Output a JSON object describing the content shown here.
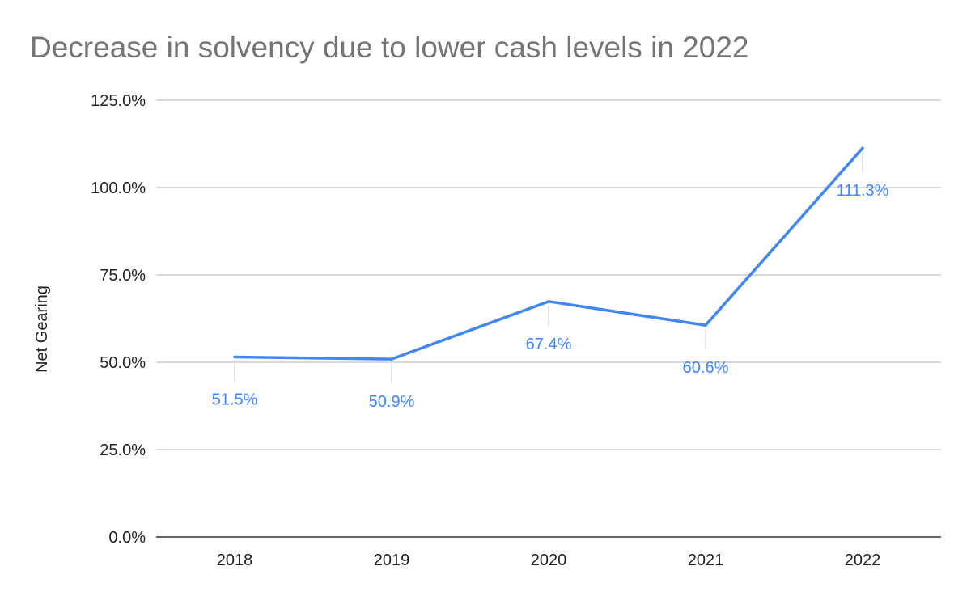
{
  "chart_data": {
    "type": "line",
    "title": "Decrease in solvency due to lower cash levels in 2022",
    "xlabel": "",
    "ylabel": "Net Gearing",
    "categories": [
      "2018",
      "2019",
      "2020",
      "2021",
      "2022"
    ],
    "series": [
      {
        "values": [
          51.5,
          50.9,
          67.4,
          60.6,
          111.3
        ],
        "labels": [
          "51.5%",
          "50.9%",
          "67.4%",
          "60.6%",
          "111.3%"
        ],
        "color": "#4285f4"
      }
    ],
    "ylim": [
      0,
      125
    ],
    "yticks": [
      0,
      25,
      50,
      75,
      100,
      125
    ],
    "ytick_labels": [
      "0.0%",
      "25.0%",
      "50.0%",
      "75.0%",
      "100.0%",
      "125.0%"
    ],
    "grid": true,
    "legend": "none"
  }
}
